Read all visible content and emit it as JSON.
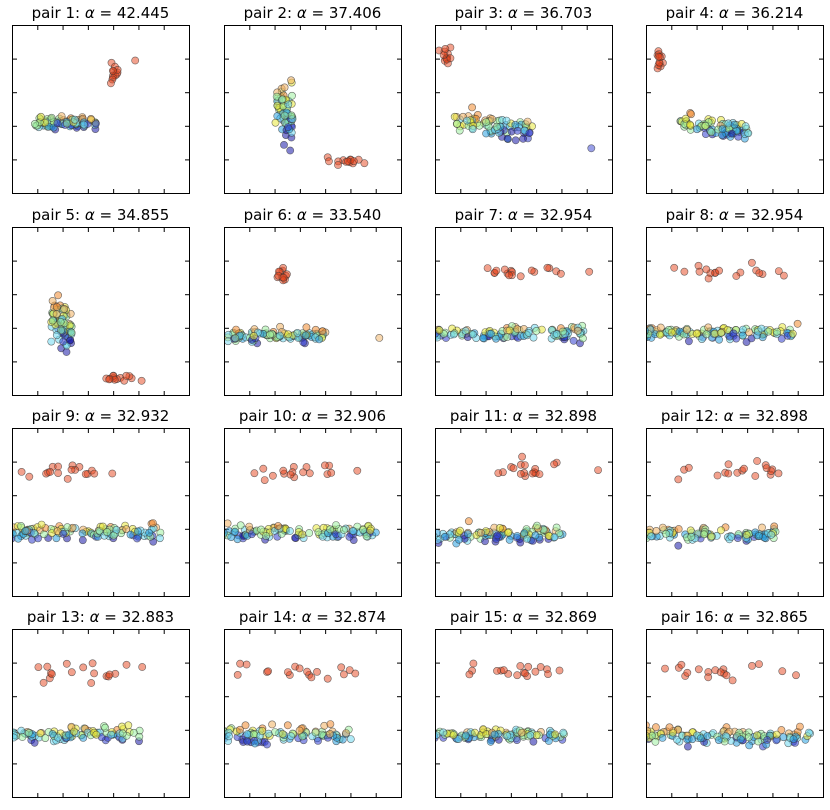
{
  "chart_data": {
    "type": "scatter",
    "description_units": "normalized data coordinates x in [0,1], y in [0,1] (y up)",
    "xlim": [
      0,
      1
    ],
    "ylim": [
      0,
      1
    ],
    "grid": false,
    "panels": [
      {
        "label": "pair 1:",
        "alpha_symbol": "α",
        "value_text": "= 42.445",
        "clusters": [
          {
            "cx": 0.3,
            "cy": 0.42,
            "sx": 0.18,
            "sy": 0.035,
            "n": 90,
            "gradient": true
          },
          {
            "cx": 0.58,
            "cy": 0.71,
            "sx": 0.025,
            "sy": 0.06,
            "n": 12,
            "gradient": false
          },
          {
            "cx": 0.7,
            "cy": 0.79,
            "sx": 0.005,
            "sy": 0.005,
            "n": 1,
            "gradient": false
          }
        ]
      },
      {
        "label": "pair 2:",
        "alpha_symbol": "α",
        "value_text": "= 37.406",
        "clusters": [
          {
            "cx": 0.34,
            "cy": 0.48,
            "sx": 0.05,
            "sy": 0.16,
            "n": 70,
            "gradient": true,
            "tilt": -2.5
          },
          {
            "cx": 0.7,
            "cy": 0.19,
            "sx": 0.09,
            "sy": 0.02,
            "n": 14,
            "gradient": false
          }
        ]
      },
      {
        "label": "pair 3:",
        "alpha_symbol": "α",
        "value_text": "= 36.703",
        "clusters": [
          {
            "cx": 0.33,
            "cy": 0.4,
            "sx": 0.22,
            "sy": 0.06,
            "n": 80,
            "gradient": true,
            "tilt": -0.22
          },
          {
            "cx": 0.07,
            "cy": 0.8,
            "sx": 0.03,
            "sy": 0.06,
            "n": 12,
            "gradient": false
          },
          {
            "cx": 0.88,
            "cy": 0.27,
            "sx": 0.005,
            "sy": 0.005,
            "n": 1,
            "gradient": false,
            "color": "#3340d0"
          }
        ]
      },
      {
        "label": "pair 4:",
        "alpha_symbol": "α",
        "value_text": "= 36.214",
        "clusters": [
          {
            "cx": 0.38,
            "cy": 0.39,
            "sx": 0.2,
            "sy": 0.05,
            "n": 80,
            "gradient": true,
            "tilt": -0.3
          },
          {
            "cx": 0.07,
            "cy": 0.78,
            "sx": 0.02,
            "sy": 0.08,
            "n": 12,
            "gradient": false
          }
        ]
      },
      {
        "label": "pair 5:",
        "alpha_symbol": "α",
        "value_text": "= 34.855",
        "clusters": [
          {
            "cx": 0.28,
            "cy": 0.42,
            "sx": 0.06,
            "sy": 0.15,
            "n": 70,
            "gradient": true,
            "tilt": -2.0
          },
          {
            "cx": 0.64,
            "cy": 0.1,
            "sx": 0.08,
            "sy": 0.02,
            "n": 14,
            "gradient": false
          }
        ]
      },
      {
        "label": "pair 6:",
        "alpha_symbol": "α",
        "value_text": "= 33.540",
        "clusters": [
          {
            "cx": 0.3,
            "cy": 0.35,
            "sx": 0.28,
            "sy": 0.04,
            "n": 100,
            "gradient": true
          },
          {
            "cx": 0.34,
            "cy": 0.7,
            "sx": 0.03,
            "sy": 0.06,
            "n": 12,
            "gradient": false
          },
          {
            "cx": 0.02,
            "cy": 0.32,
            "sx": 0.005,
            "sy": 0.005,
            "n": 1,
            "gradient": false,
            "color": "#6fd8f0"
          },
          {
            "cx": 0.88,
            "cy": 0.34,
            "sx": 0.005,
            "sy": 0.005,
            "n": 1,
            "gradient": false,
            "color": "#f0b060"
          }
        ]
      },
      {
        "label": "pair 7:",
        "alpha_symbol": "α",
        "value_text": "= 32.954",
        "clusters": [
          {
            "cx": 0.4,
            "cy": 0.37,
            "sx": 0.46,
            "sy": 0.045,
            "n": 120,
            "gradient": true
          },
          {
            "cx": 0.45,
            "cy": 0.73,
            "sx": 0.3,
            "sy": 0.05,
            "n": 18,
            "gradient": false
          }
        ]
      },
      {
        "label": "pair 8:",
        "alpha_symbol": "α",
        "value_text": "= 32.954",
        "clusters": [
          {
            "cx": 0.4,
            "cy": 0.37,
            "sx": 0.46,
            "sy": 0.045,
            "n": 120,
            "gradient": true
          },
          {
            "cx": 0.45,
            "cy": 0.73,
            "sx": 0.3,
            "sy": 0.05,
            "n": 18,
            "gradient": false
          }
        ]
      },
      {
        "label": "pair 9:",
        "alpha_symbol": "α",
        "value_text": "= 32.932",
        "clusters": [
          {
            "cx": 0.4,
            "cy": 0.38,
            "sx": 0.46,
            "sy": 0.045,
            "n": 120,
            "gradient": true
          },
          {
            "cx": 0.35,
            "cy": 0.74,
            "sx": 0.3,
            "sy": 0.05,
            "n": 18,
            "gradient": false
          }
        ]
      },
      {
        "label": "pair 10:",
        "alpha_symbol": "α",
        "value_text": "= 32.906",
        "clusters": [
          {
            "cx": 0.4,
            "cy": 0.38,
            "sx": 0.46,
            "sy": 0.045,
            "n": 120,
            "gradient": true
          },
          {
            "cx": 0.43,
            "cy": 0.74,
            "sx": 0.24,
            "sy": 0.05,
            "n": 18,
            "gradient": false
          }
        ]
      },
      {
        "label": "pair 11:",
        "alpha_symbol": "α",
        "value_text": "= 32.898",
        "clusters": [
          {
            "cx": 0.28,
            "cy": 0.37,
            "sx": 0.46,
            "sy": 0.045,
            "n": 120,
            "gradient": true
          },
          {
            "cx": 0.55,
            "cy": 0.74,
            "sx": 0.24,
            "sy": 0.06,
            "n": 18,
            "gradient": false
          }
        ]
      },
      {
        "label": "pair 12:",
        "alpha_symbol": "α",
        "value_text": "= 32.898",
        "clusters": [
          {
            "cx": 0.28,
            "cy": 0.37,
            "sx": 0.46,
            "sy": 0.045,
            "n": 120,
            "gradient": true
          },
          {
            "cx": 0.55,
            "cy": 0.74,
            "sx": 0.24,
            "sy": 0.06,
            "n": 18,
            "gradient": false
          }
        ]
      },
      {
        "label": "pair 13:",
        "alpha_symbol": "α",
        "value_text": "= 32.883",
        "clusters": [
          {
            "cx": 0.25,
            "cy": 0.37,
            "sx": 0.48,
            "sy": 0.045,
            "n": 120,
            "gradient": true
          },
          {
            "cx": 0.47,
            "cy": 0.74,
            "sx": 0.3,
            "sy": 0.05,
            "n": 18,
            "gradient": false
          }
        ]
      },
      {
        "label": "pair 14:",
        "alpha_symbol": "α",
        "value_text": "= 32.874",
        "clusters": [
          {
            "cx": 0.25,
            "cy": 0.37,
            "sx": 0.48,
            "sy": 0.045,
            "n": 120,
            "gradient": true
          },
          {
            "cx": 0.47,
            "cy": 0.74,
            "sx": 0.3,
            "sy": 0.05,
            "n": 18,
            "gradient": false
          }
        ]
      },
      {
        "label": "pair 15:",
        "alpha_symbol": "α",
        "value_text": "= 32.869",
        "clusters": [
          {
            "cx": 0.25,
            "cy": 0.37,
            "sx": 0.48,
            "sy": 0.045,
            "n": 120,
            "gradient": true
          },
          {
            "cx": 0.47,
            "cy": 0.74,
            "sx": 0.3,
            "sy": 0.05,
            "n": 18,
            "gradient": false
          }
        ]
      },
      {
        "label": "pair 16:",
        "alpha_symbol": "α",
        "value_text": "= 32.865",
        "clusters": [
          {
            "cx": 0.45,
            "cy": 0.36,
            "sx": 0.48,
            "sy": 0.045,
            "n": 120,
            "gradient": true
          },
          {
            "cx": 0.4,
            "cy": 0.74,
            "sx": 0.3,
            "sy": 0.05,
            "n": 18,
            "gradient": false
          }
        ]
      }
    ]
  },
  "colors": {
    "red_cluster": "#e5441c",
    "gradient": [
      "#1a1aa8",
      "#3340d0",
      "#2aa0e0",
      "#6fd8f0",
      "#9ef0a0",
      "#e8e83a",
      "#f0b060",
      "#f08a30"
    ],
    "marker_edge": "#333333",
    "axes": "#000000"
  }
}
